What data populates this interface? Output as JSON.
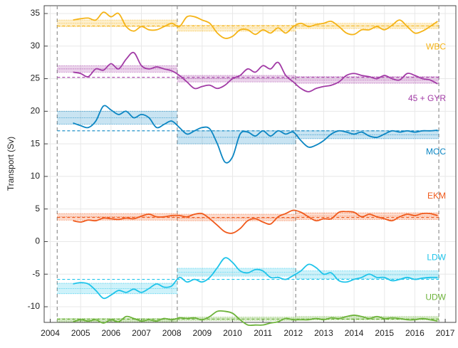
{
  "chart_data": {
    "type": "line",
    "y_label": "Transport (Sv)",
    "xlim": [
      2003.8,
      2017.35
    ],
    "xticks": [
      2004,
      2005,
      2006,
      2007,
      2008,
      2009,
      2010,
      2011,
      2012,
      2013,
      2014,
      2015,
      2016,
      2017
    ],
    "ylim": [
      -12.4,
      36.2
    ],
    "yticks": [
      -10,
      -5,
      0,
      5,
      10,
      15,
      20,
      25,
      30,
      35
    ],
    "grid": true,
    "breaks": [
      2004.23,
      2008.18,
      2012.08,
      2016.79
    ],
    "x": [
      2004.75,
      2005,
      2005.25,
      2005.5,
      2005.75,
      2006,
      2006.25,
      2006.5,
      2006.75,
      2007,
      2007.25,
      2007.5,
      2007.75,
      2008,
      2008.25,
      2008.5,
      2008.75,
      2009,
      2009.25,
      2009.5,
      2009.75,
      2010,
      2010.25,
      2010.5,
      2010.75,
      2011,
      2011.25,
      2011.5,
      2011.75,
      2012,
      2012.25,
      2012.5,
      2012.75,
      2013,
      2013.25,
      2013.5,
      2013.75,
      2014,
      2014.25,
      2014.5,
      2014.75,
      2015,
      2015.25,
      2015.5,
      2015.75,
      2016,
      2016.25,
      2016.5,
      2016.75
    ],
    "series": [
      {
        "name": "WBC",
        "color": "#f5b417",
        "values": [
          34,
          34.2,
          34.3,
          34,
          35.2,
          34.5,
          35,
          33,
          32.3,
          33,
          32.5,
          32.5,
          33,
          33.5,
          33,
          34.5,
          34.5,
          34,
          33.5,
          32,
          31.2,
          31.5,
          32.5,
          32.5,
          31.8,
          32.5,
          32,
          32.8,
          32,
          33,
          33.5,
          33,
          33.3,
          33.5,
          33.8,
          33,
          32,
          31.8,
          32.5,
          32.5,
          33,
          32.5,
          33.2,
          34,
          33,
          32,
          32.3,
          33,
          33.8
        ],
        "period_lower": [
          33.0,
          32.3,
          32.7
        ],
        "period_means": [
          33.5,
          32.8,
          33.1
        ],
        "period_upper": [
          34.0,
          33.2,
          33.5
        ],
        "overall_mean": 33.1
      },
      {
        "name": "45 + GYR",
        "color": "#a23ba6",
        "values": [
          26,
          25.8,
          25.3,
          26.5,
          26.3,
          27.3,
          26.5,
          28,
          29,
          27,
          26.5,
          26.8,
          26.5,
          26.2,
          25.5,
          24.5,
          23.5,
          23.8,
          24,
          23.5,
          24,
          25,
          25.5,
          26.5,
          26,
          27,
          26.5,
          27.5,
          25.5,
          24.5,
          23.5,
          23,
          23.5,
          23.8,
          24,
          24.5,
          25.5,
          25.8,
          25.5,
          25.3,
          25,
          25.5,
          25,
          24.8,
          25.8,
          25.5,
          25,
          24.8,
          24.2
        ],
        "period_lower": [
          26.0,
          24.5,
          24.3
        ],
        "period_means": [
          26.5,
          25.0,
          24.8
        ],
        "period_upper": [
          27.0,
          25.5,
          25.3
        ],
        "overall_mean": 25.2
      },
      {
        "name": "MOC",
        "color": "#0b86c3",
        "values": [
          18.2,
          17.8,
          17.5,
          18.5,
          20.8,
          20.2,
          19.5,
          20,
          19,
          19.5,
          19,
          17.5,
          18,
          18.5,
          17.5,
          16.5,
          17,
          17.5,
          17.3,
          15,
          12.2,
          13,
          16.5,
          16.8,
          16.2,
          17,
          16.2,
          17,
          16.5,
          16.8,
          15.5,
          14.5,
          14.8,
          15.5,
          16.5,
          17,
          16.8,
          16.5,
          16.8,
          16.2,
          16,
          16.5,
          17,
          16.8,
          17,
          16.8,
          17,
          17,
          17.1
        ],
        "period_lower": [
          18.0,
          15.0,
          15.8
        ],
        "period_means": [
          19.0,
          16.0,
          16.4
        ],
        "period_upper": [
          20.0,
          17.0,
          17.0
        ],
        "overall_mean": 17.0
      },
      {
        "name": "EKM",
        "color": "#f05a1c",
        "values": [
          3.2,
          3,
          3.3,
          3.2,
          3.6,
          3.5,
          3.4,
          3.6,
          3.5,
          3.9,
          4.2,
          3.8,
          3.8,
          4,
          4,
          3.8,
          4.2,
          4.3,
          3.5,
          2.5,
          1.5,
          1.3,
          2,
          3.2,
          3.5,
          3,
          2.7,
          3.8,
          4.3,
          4.8,
          4.5,
          3.8,
          3.2,
          3.5,
          3.5,
          4.5,
          4.6,
          4.5,
          3.8,
          4.2,
          3.8,
          3.5,
          3.2,
          3.8,
          4.2,
          4,
          4.3,
          4.3,
          4
        ],
        "period_lower": [
          3.3,
          3.2,
          3.4
        ],
        "period_means": [
          3.8,
          3.6,
          3.9
        ],
        "period_upper": [
          4.3,
          4.2,
          4.4
        ],
        "overall_mean": 3.7
      },
      {
        "name": "LDW",
        "color": "#1ec4ea",
        "values": [
          -6.5,
          -6.3,
          -6.5,
          -7.5,
          -8.7,
          -8.2,
          -7.5,
          -7.8,
          -7.3,
          -7.8,
          -7.2,
          -6.5,
          -7,
          -6.8,
          -5.5,
          -6.2,
          -5.8,
          -6.2,
          -5.5,
          -4,
          -2.5,
          -3.2,
          -4.5,
          -4.8,
          -4.3,
          -4.5,
          -5.5,
          -5.5,
          -5.8,
          -5.2,
          -4.5,
          -3.5,
          -4,
          -5,
          -4.8,
          -6,
          -6.2,
          -5.8,
          -5.5,
          -5,
          -5.5,
          -5.5,
          -6,
          -5.8,
          -5.5,
          -5.8,
          -5.6,
          -5.5,
          -5.5
        ],
        "period_lower": [
          -8.0,
          -5.3,
          -5.7
        ],
        "period_means": [
          -7.2,
          -4.7,
          -5.1
        ],
        "period_upper": [
          -6.4,
          -4.1,
          -4.5
        ],
        "overall_mean": -5.8
      },
      {
        "name": "UDW",
        "color": "#6db33a",
        "values": [
          -12.3,
          -12,
          -12.2,
          -12,
          -12.5,
          -12,
          -12.3,
          -11.5,
          -11.8,
          -12.2,
          -12,
          -12.2,
          -11.8,
          -12,
          -11.7,
          -11.8,
          -11.7,
          -12,
          -11.5,
          -10.7,
          -10.7,
          -11,
          -12,
          -12.8,
          -12.8,
          -12.8,
          -12.5,
          -12.3,
          -11.8,
          -12,
          -12,
          -12,
          -11.8,
          -12,
          -11.7,
          -11.8,
          -11.5,
          -11.3,
          -11.5,
          -11.8,
          -11.5,
          -11.8,
          -11.7,
          -11.8,
          -12,
          -12,
          -11.8,
          -12,
          -12.2
        ],
        "period_lower": [
          -12.3,
          -12.1,
          -12.0
        ],
        "period_means": [
          -12.05,
          -11.85,
          -11.75
        ],
        "period_upper": [
          -11.8,
          -11.6,
          -11.5
        ],
        "overall_mean": -11.9
      }
    ]
  }
}
